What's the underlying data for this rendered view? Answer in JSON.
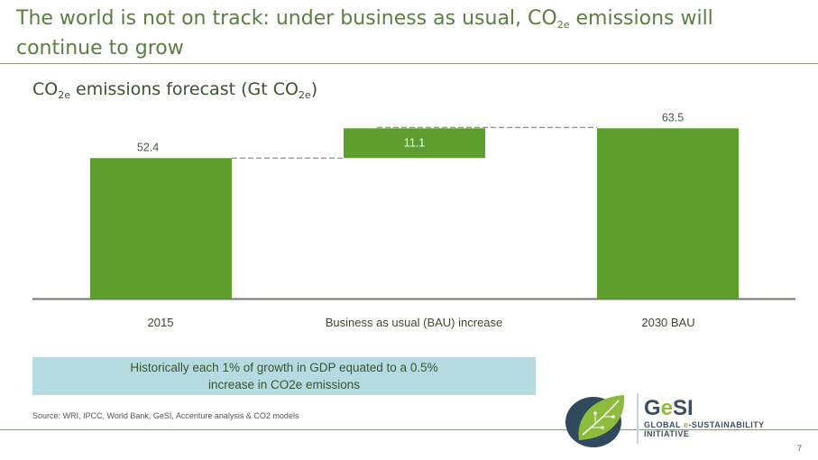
{
  "slide": {
    "title_pre": "The world is not on track: under business as usual, CO",
    "title_sub": "2e",
    "title_post": " emissions will continue to grow",
    "note": "Historically each 1% of growth in GDP equated to a 0.5% increase in CO2e emissions",
    "source": "Source: WRI, IPCC, World Bank, GeSI, Accenture analysis & CO2 models",
    "page_number": "7"
  },
  "logo": {
    "name_pre": "G",
    "name_e": "e",
    "name_post": "SI",
    "tagline_pre": "GLOBAL ",
    "tagline_e": "e",
    "tagline_post": "-SUSTAINABILITY INITIATIVE"
  },
  "chart_data": {
    "type": "bar",
    "subtype": "waterfall",
    "title_pre": "CO",
    "title_sub1": "2e",
    "title_mid": " emissions forecast (Gt CO",
    "title_sub2": "2e",
    "title_post": ")",
    "categories": [
      "2015",
      "Business as usual (BAU) increase",
      "2030 BAU"
    ],
    "values": [
      52.4,
      11.1,
      63.5
    ],
    "value_labels": [
      "52.4",
      "11.1",
      "63.5"
    ],
    "bases": [
      0,
      52.4,
      0
    ],
    "ylim": [
      0,
      72
    ],
    "bar_color": "#5d9e2f",
    "grid": false
  }
}
